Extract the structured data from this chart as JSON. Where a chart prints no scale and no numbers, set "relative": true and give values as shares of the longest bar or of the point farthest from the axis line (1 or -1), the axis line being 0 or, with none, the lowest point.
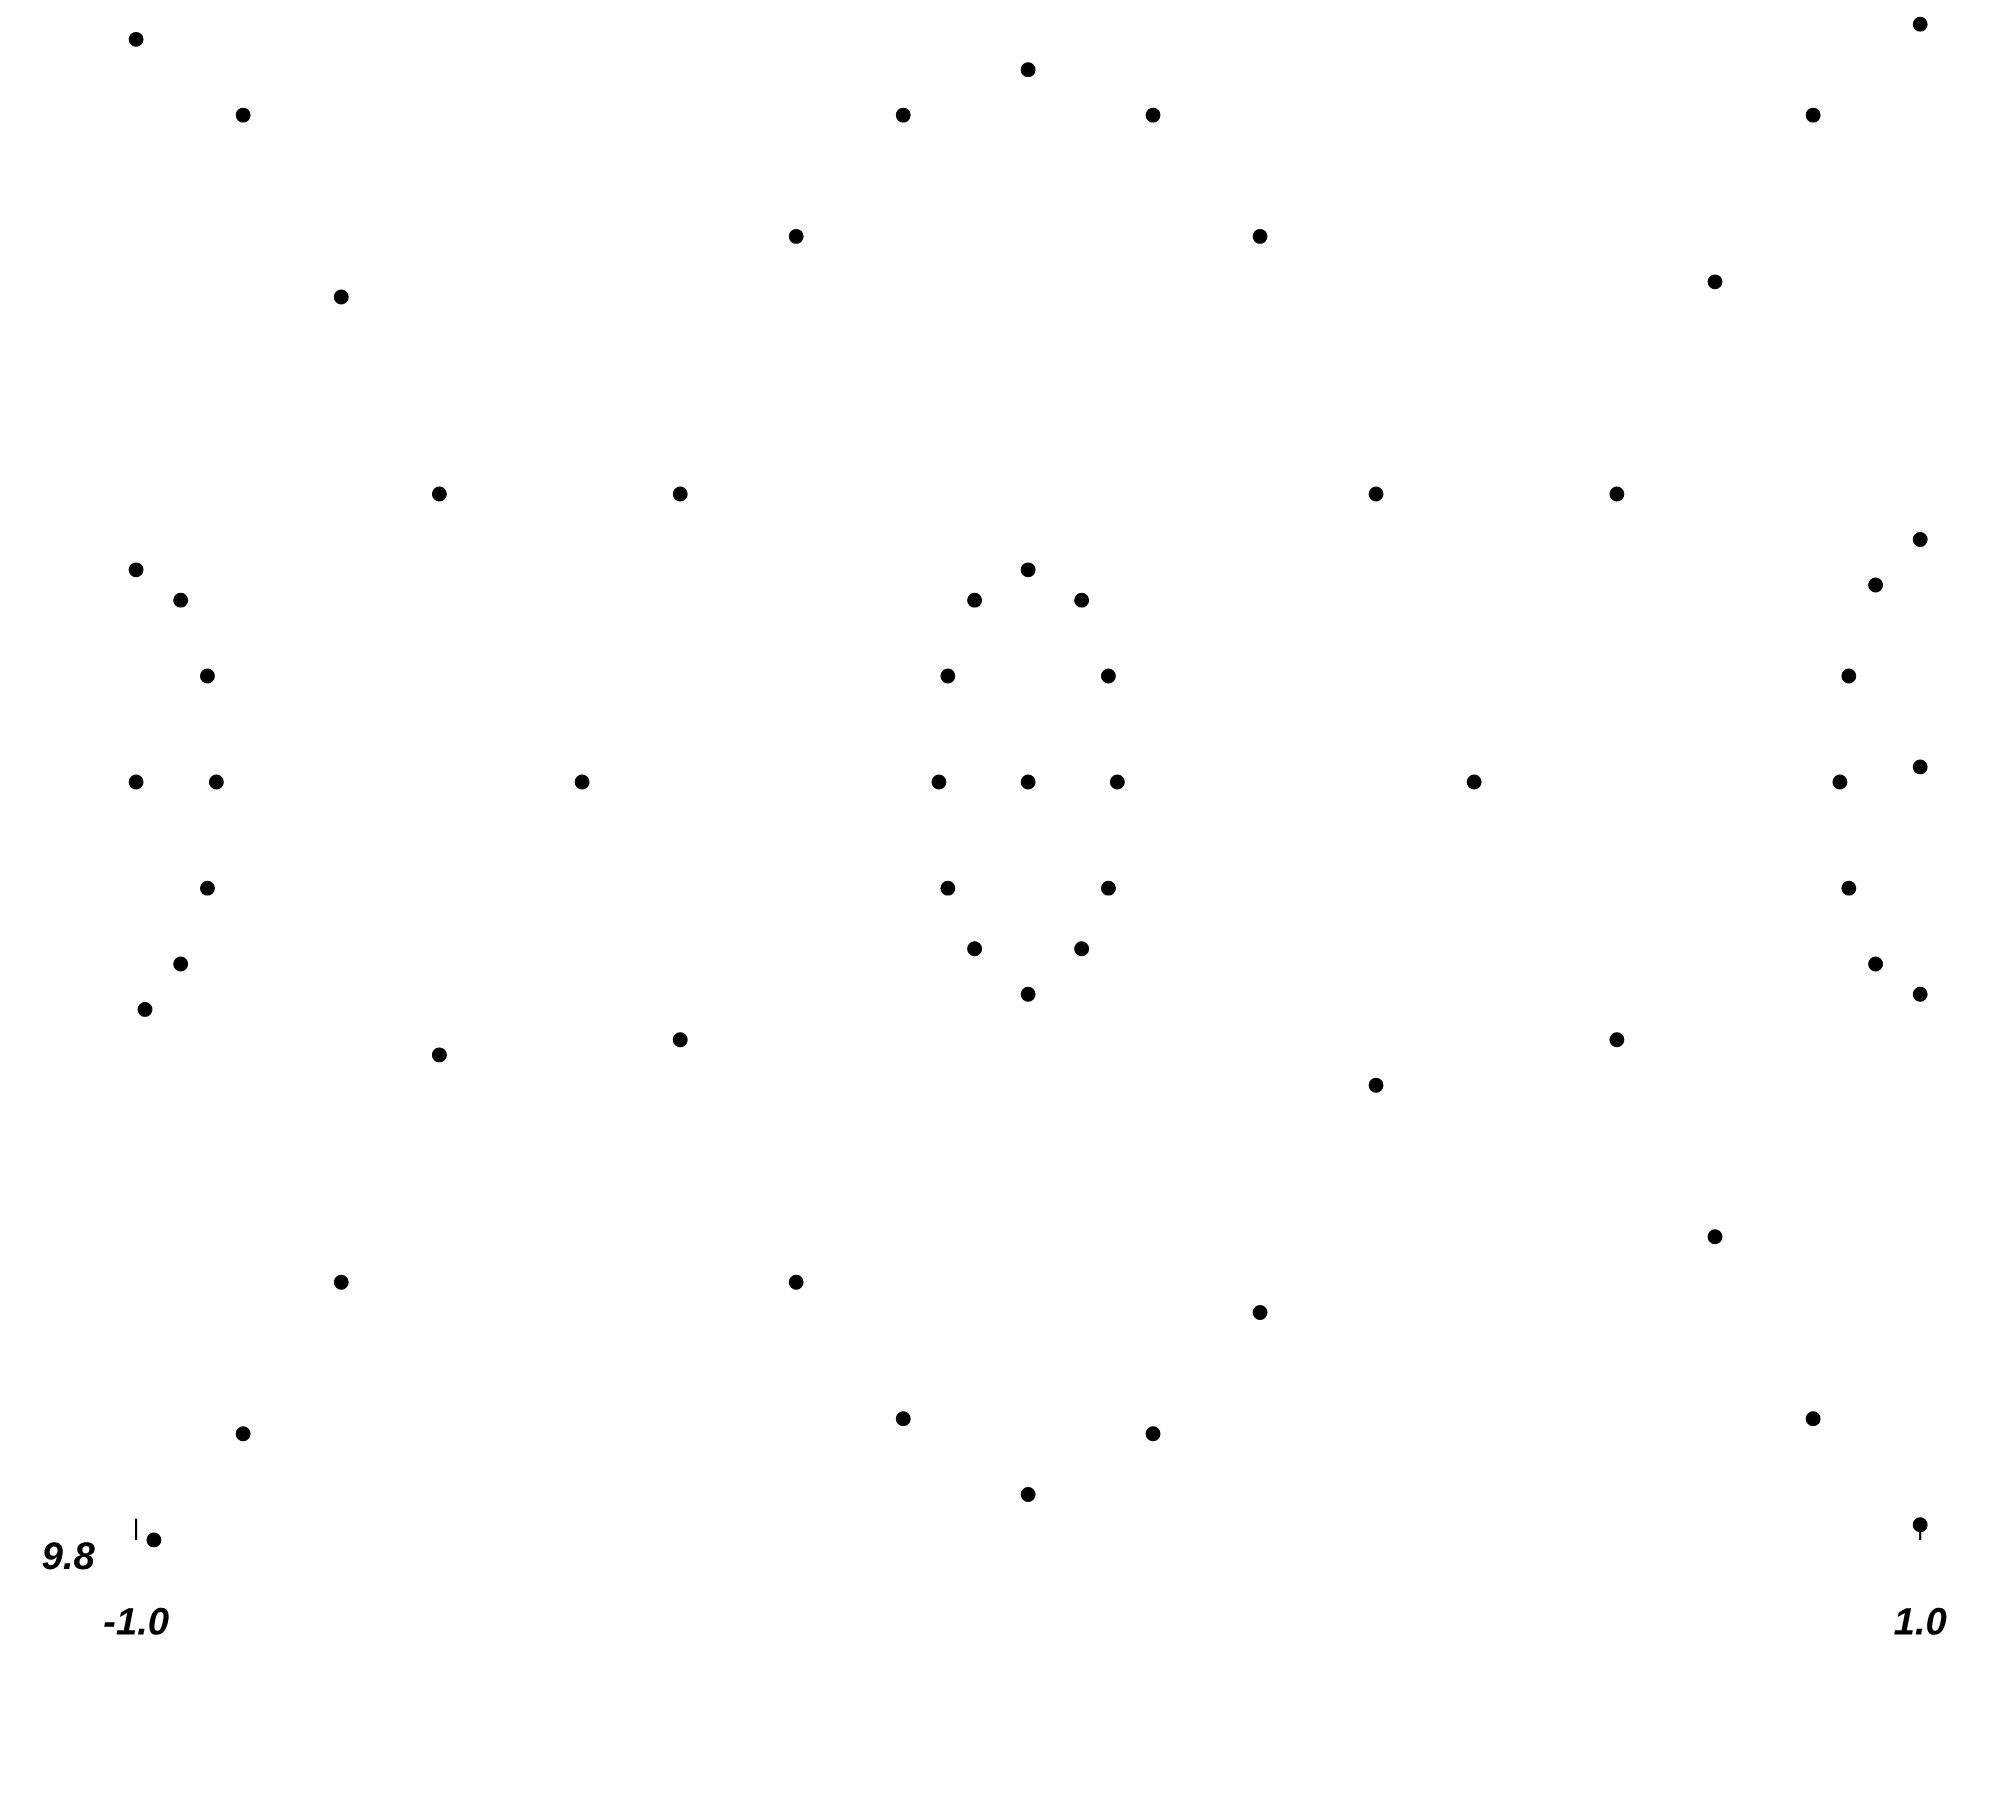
{
  "chart_data": {
    "type": "scatter",
    "relative": true,
    "tick_labels": "x",
    "xlim": [
      -1.0,
      1.0
    ],
    "xticks": [
      {
        "value": -1.0,
        "label": "-1.0"
      },
      {
        "value": 1.0,
        "label": "1.0"
      }
    ],
    "annotations": [
      "9.8"
    ],
    "series": [
      {
        "color": "#000000",
        "x": [
          -1.0,
          -0.88,
          -0.77,
          -0.66,
          -0.5,
          -0.39,
          -0.26,
          -0.14,
          0.0,
          0.14,
          0.26,
          0.39,
          0.5,
          0.66,
          0.77,
          0.88,
          1.0
        ],
        "values": [
          0.99,
          0.94,
          0.82,
          0.69,
          0.5,
          0.33,
          0.17,
          0.08,
          0.03,
          0.07,
          0.15,
          0.3,
          0.5,
          0.69,
          0.83,
          0.94,
          1.0
        ]
      },
      {
        "color": "#000000",
        "x": [
          -0.98,
          -0.88,
          -0.77,
          -0.66,
          -0.5,
          -0.39,
          -0.26,
          -0.14,
          0.0,
          0.14,
          0.26,
          0.39,
          0.5,
          0.66,
          0.77,
          0.88,
          1.0
        ],
        "values": [
          0.0,
          0.07,
          0.17,
          0.32,
          null,
          0.69,
          0.86,
          0.94,
          0.97,
          0.94,
          0.86,
          0.69,
          null,
          0.33,
          0.2,
          0.08,
          0.01
        ]
      },
      {
        "color": "#000000",
        "x": [
          0.0,
          0.06,
          0.09,
          0.1,
          0.09,
          0.06,
          0.0,
          -0.06,
          -0.09,
          -0.1,
          -0.09,
          -0.06
        ],
        "values": [
          0.64,
          0.62,
          0.57,
          0.5,
          0.43,
          0.39,
          0.36,
          0.39,
          0.43,
          0.5,
          0.57,
          0.62
        ]
      },
      {
        "color": "#000000",
        "x": [
          0.0,
          -1.0,
          1.0
        ],
        "values": [
          0.5,
          0.5,
          0.51
        ]
      },
      {
        "color": "#000000",
        "x": [
          -1.0,
          -0.95,
          -0.92,
          -0.91,
          -0.92,
          -0.95,
          -0.99
        ],
        "values": [
          0.64,
          0.62,
          0.57,
          0.5,
          0.43,
          0.38,
          0.35
        ]
      },
      {
        "color": "#000000",
        "x": [
          1.0,
          0.95,
          0.92,
          0.91,
          0.92,
          0.95,
          1.0
        ],
        "values": [
          0.66,
          0.63,
          0.57,
          0.5,
          0.43,
          0.38,
          0.36
        ]
      }
    ]
  }
}
